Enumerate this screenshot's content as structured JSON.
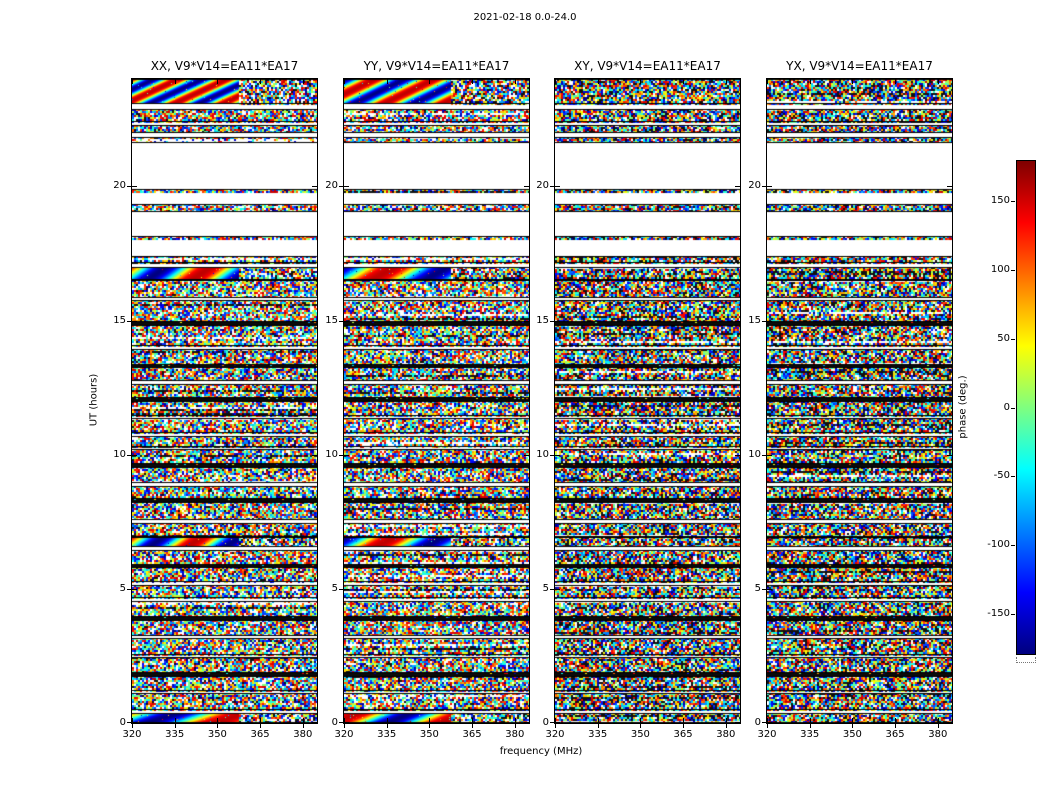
{
  "chart_data": {
    "type": "heatmap",
    "title": "2021-02-18 0.0-24.0",
    "xlabel": "frequency (MHz)",
    "ylabel": "UT (hours)",
    "x_range": [
      320,
      385
    ],
    "x_ticks": [
      320,
      335,
      350,
      365,
      380
    ],
    "y_range": [
      0,
      24
    ],
    "y_ticks": [
      0,
      5,
      10,
      15,
      20
    ],
    "panels": [
      {
        "id": "XX",
        "title": "XX, V9*V14=EA11*EA17"
      },
      {
        "id": "YY",
        "title": "YY, V9*V14=EA11*EA17"
      },
      {
        "id": "XY",
        "title": "XY, V9*V14=EA11*EA17"
      },
      {
        "id": "YX",
        "title": "YX, V9*V14=EA11*EA17"
      }
    ],
    "colorbar": {
      "label": "phase (deg.)",
      "range": [
        -180,
        180
      ],
      "ticks": [
        150,
        100,
        50,
        0,
        -50,
        -100,
        -150
      ],
      "colormap": "jet"
    },
    "time_bands": [
      {
        "top": 24.0,
        "bottom": 23.05,
        "type": "smoothTop"
      },
      {
        "top": 23.05,
        "bottom": 22.9,
        "type": "gap"
      },
      {
        "top": 22.9,
        "bottom": 22.4,
        "type": "noise"
      },
      {
        "top": 22.4,
        "bottom": 22.28,
        "type": "gap"
      },
      {
        "top": 22.28,
        "bottom": 22.0,
        "type": "noise"
      },
      {
        "top": 22.0,
        "bottom": 21.85,
        "type": "gap"
      },
      {
        "top": 21.85,
        "bottom": 21.6,
        "type": "noise"
      },
      {
        "top": 21.6,
        "bottom": 19.9,
        "type": "gap"
      },
      {
        "top": 19.9,
        "bottom": 19.75,
        "type": "noise"
      },
      {
        "top": 19.75,
        "bottom": 19.35,
        "type": "gap"
      },
      {
        "top": 19.35,
        "bottom": 19.05,
        "type": "noise"
      },
      {
        "top": 19.05,
        "bottom": 18.15,
        "type": "gap"
      },
      {
        "top": 18.15,
        "bottom": 18.0,
        "type": "noise"
      },
      {
        "top": 18.0,
        "bottom": 17.4,
        "type": "gap"
      },
      {
        "top": 17.4,
        "bottom": 17.15,
        "type": "noise"
      },
      {
        "top": 17.15,
        "bottom": 17.0,
        "type": "gap"
      },
      {
        "top": 17.0,
        "bottom": 16.5,
        "type": "smoothMid"
      },
      {
        "top": 16.5,
        "bottom": 15.85,
        "type": "noise"
      },
      {
        "top": 15.85,
        "bottom": 15.75,
        "type": "gap"
      },
      {
        "top": 15.75,
        "bottom": 14.95,
        "type": "noise"
      },
      {
        "top": 14.95,
        "bottom": 14.85,
        "type": "line"
      },
      {
        "top": 14.85,
        "bottom": 14.05,
        "type": "noise"
      },
      {
        "top": 14.05,
        "bottom": 13.95,
        "type": "gap"
      },
      {
        "top": 13.95,
        "bottom": 13.35,
        "type": "noise"
      },
      {
        "top": 13.35,
        "bottom": 13.25,
        "type": "line"
      },
      {
        "top": 13.25,
        "bottom": 12.75,
        "type": "noise"
      },
      {
        "top": 12.75,
        "bottom": 12.65,
        "type": "gap"
      },
      {
        "top": 12.65,
        "bottom": 12.1,
        "type": "noise"
      },
      {
        "top": 12.1,
        "bottom": 12.0,
        "type": "line"
      },
      {
        "top": 12.0,
        "bottom": 11.45,
        "type": "noise"
      },
      {
        "top": 11.45,
        "bottom": 11.35,
        "type": "gap"
      },
      {
        "top": 11.35,
        "bottom": 10.8,
        "type": "noise"
      },
      {
        "top": 10.8,
        "bottom": 10.7,
        "type": "gap"
      },
      {
        "top": 10.7,
        "bottom": 10.3,
        "type": "noise"
      },
      {
        "top": 10.3,
        "bottom": 10.2,
        "type": "gap"
      },
      {
        "top": 10.2,
        "bottom": 9.65,
        "type": "noise"
      },
      {
        "top": 9.65,
        "bottom": 9.55,
        "type": "line"
      },
      {
        "top": 9.55,
        "bottom": 8.95,
        "type": "noise"
      },
      {
        "top": 8.95,
        "bottom": 8.85,
        "type": "gap"
      },
      {
        "top": 8.85,
        "bottom": 8.35,
        "type": "noise"
      },
      {
        "top": 8.35,
        "bottom": 8.25,
        "type": "line"
      },
      {
        "top": 8.25,
        "bottom": 7.55,
        "type": "noise"
      },
      {
        "top": 7.55,
        "bottom": 7.45,
        "type": "gap"
      },
      {
        "top": 7.45,
        "bottom": 6.95,
        "type": "noise"
      },
      {
        "top": 6.95,
        "bottom": 6.55,
        "type": "smoothLow"
      },
      {
        "top": 6.55,
        "bottom": 6.45,
        "type": "gap"
      },
      {
        "top": 6.45,
        "bottom": 5.9,
        "type": "noise"
      },
      {
        "top": 5.9,
        "bottom": 5.8,
        "type": "line"
      },
      {
        "top": 5.8,
        "bottom": 5.25,
        "type": "noise"
      },
      {
        "top": 5.25,
        "bottom": 5.15,
        "type": "gap"
      },
      {
        "top": 5.15,
        "bottom": 4.65,
        "type": "noise"
      },
      {
        "top": 4.65,
        "bottom": 4.55,
        "type": "gap"
      },
      {
        "top": 4.55,
        "bottom": 3.95,
        "type": "noise"
      },
      {
        "top": 3.95,
        "bottom": 3.85,
        "type": "line"
      },
      {
        "top": 3.85,
        "bottom": 3.25,
        "type": "noise"
      },
      {
        "top": 3.25,
        "bottom": 3.15,
        "type": "gap"
      },
      {
        "top": 3.15,
        "bottom": 2.55,
        "type": "noise"
      },
      {
        "top": 2.55,
        "bottom": 2.45,
        "type": "gap"
      },
      {
        "top": 2.45,
        "bottom": 1.85,
        "type": "noise"
      },
      {
        "top": 1.85,
        "bottom": 1.75,
        "type": "line"
      },
      {
        "top": 1.75,
        "bottom": 1.2,
        "type": "noise"
      },
      {
        "top": 1.2,
        "bottom": 1.1,
        "type": "gap"
      },
      {
        "top": 1.1,
        "bottom": 0.5,
        "type": "noise"
      },
      {
        "top": 0.5,
        "bottom": 0.38,
        "type": "gap"
      },
      {
        "top": 0.38,
        "bottom": 0.0,
        "type": "smoothBot"
      }
    ],
    "notes": "Four-panel dynamic-spectrum waterfall of interferometric phase (deg) vs frequency (MHz, x) and UT time (hours, y) for polarization products XX, YY, XY, YX of baseline V9*V14=EA11*EA17. Mostly random-looking phase noise in jet colors, broken by white no-data gaps (largest at UT ~19.9-21.6) and thin black separator lines. XX and YY show smooth coherent phase sweeps (rainbow gradients) near UT ~23-24, ~16.5-17, ~6.6-7 and near UT 0; XY and YX are noise-like throughout."
  }
}
